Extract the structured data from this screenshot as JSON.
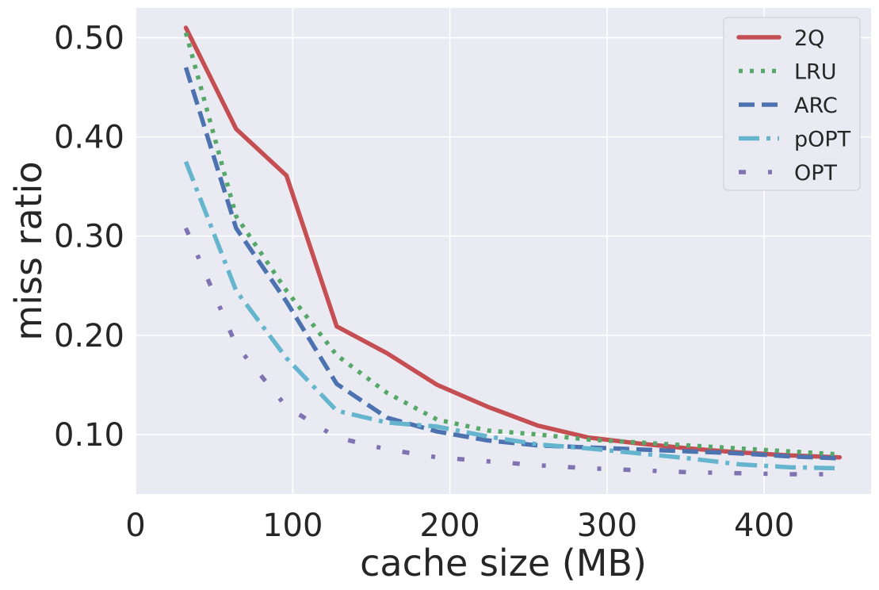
{
  "chart_data": {
    "type": "line",
    "xlabel": "cache size (MB)",
    "ylabel": "miss ratio",
    "xlim": [
      0,
      468
    ],
    "ylim": [
      0.04,
      0.53
    ],
    "x_ticks": [
      0,
      100,
      200,
      300,
      400
    ],
    "x_tick_labels": [
      "0",
      "100",
      "200",
      "300",
      "400"
    ],
    "y_ticks": [
      0.1,
      0.2,
      0.3,
      0.4,
      0.5
    ],
    "y_tick_labels": [
      "0.10",
      "0.20",
      "0.30",
      "0.40",
      "0.50"
    ],
    "grid": true,
    "legend_position": "top-right",
    "x": [
      32,
      64,
      96,
      128,
      160,
      192,
      224,
      256,
      288,
      320,
      352,
      384,
      416,
      448
    ],
    "series": [
      {
        "name": "2Q",
        "color": "#c44e52",
        "dash": "solid",
        "values": [
          0.51,
          0.408,
          0.361,
          0.209,
          0.182,
          0.15,
          0.128,
          0.109,
          0.097,
          0.091,
          0.086,
          0.082,
          0.079,
          0.077
        ]
      },
      {
        "name": "LRU",
        "color": "#55a868",
        "dash": "dotted",
        "values": [
          0.505,
          0.32,
          0.245,
          0.18,
          0.142,
          0.115,
          0.104,
          0.1,
          0.095,
          0.092,
          0.089,
          0.086,
          0.083,
          0.08
        ]
      },
      {
        "name": "ARC",
        "color": "#4c72b0",
        "dash": "dashed",
        "values": [
          0.47,
          0.308,
          0.234,
          0.151,
          0.117,
          0.103,
          0.094,
          0.089,
          0.087,
          0.085,
          0.083,
          0.081,
          0.078,
          0.076
        ]
      },
      {
        "name": "pOPT",
        "color": "#64b5cd",
        "dash": "dashdot",
        "values": [
          0.375,
          0.245,
          0.177,
          0.124,
          0.112,
          0.108,
          0.098,
          0.09,
          0.086,
          0.081,
          0.076,
          0.07,
          0.067,
          0.066
        ]
      },
      {
        "name": "OPT",
        "color": "#8172b2",
        "dash": "loosedashdot",
        "values": [
          0.308,
          0.19,
          0.128,
          0.097,
          0.085,
          0.077,
          0.073,
          0.069,
          0.066,
          0.064,
          0.062,
          0.061,
          0.06,
          0.06
        ]
      }
    ]
  }
}
